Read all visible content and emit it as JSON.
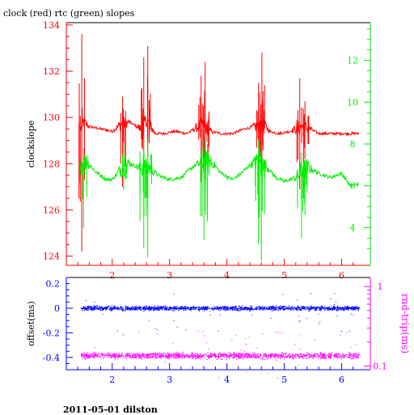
{
  "header": {
    "title": "clock (red) rtc (green) slopes"
  },
  "footer": {
    "caption": "2011-05-01 dilston"
  },
  "colors": {
    "frame": "#000000",
    "clock": "#ff0000",
    "rtc": "#00ee00",
    "offset": "#0000ff",
    "rndtrip": "#ff00ff"
  },
  "chart_data": [
    {
      "type": "line",
      "title": "clock (red) rtc (green) slopes",
      "ylabel": "clockslope",
      "xlim": [
        1.2,
        6.5
      ],
      "ylim": [
        123.6,
        134.1
      ],
      "y2lim": [
        2.2,
        13.8
      ],
      "x_ticks": [
        2,
        3,
        4,
        5,
        6
      ],
      "y_ticks": [
        124,
        126,
        128,
        130,
        132,
        134
      ],
      "y2_ticks": [
        4,
        6,
        8,
        10,
        12
      ],
      "grid": false,
      "series": [
        {
          "name": "clock",
          "axis": "left",
          "x": [
            1.45,
            1.5,
            1.6,
            1.8,
            2.0,
            2.15,
            2.3,
            2.5,
            2.6,
            2.75,
            2.9,
            3.1,
            3.3,
            3.5,
            3.6,
            3.7,
            3.9,
            4.1,
            4.3,
            4.5,
            4.6,
            4.75,
            4.9,
            5.1,
            5.3,
            5.45,
            5.6,
            5.8,
            6.0,
            6.2,
            6.3
          ],
          "y": [
            129.5,
            129.8,
            129.6,
            129.5,
            129.4,
            129.7,
            129.8,
            129.5,
            129.9,
            129.3,
            129.3,
            129.4,
            129.3,
            129.6,
            129.7,
            129.4,
            129.3,
            129.3,
            129.5,
            129.6,
            129.8,
            129.4,
            129.3,
            129.4,
            129.6,
            129.5,
            129.3,
            129.3,
            129.3,
            129.3,
            129.3
          ],
          "spikes": [
            {
              "x": 1.47,
              "min": 124.2,
              "max": 133.6
            },
            {
              "x": 2.18,
              "min": 127.0,
              "max": 130.9
            },
            {
              "x": 2.55,
              "min": 127.6,
              "max": 132.6
            },
            {
              "x": 2.62,
              "min": 128.3,
              "max": 133.1
            },
            {
              "x": 3.55,
              "min": 127.2,
              "max": 131.8
            },
            {
              "x": 3.62,
              "min": 127.9,
              "max": 132.4
            },
            {
              "x": 4.55,
              "min": 127.3,
              "max": 131.5
            },
            {
              "x": 4.61,
              "min": 128.0,
              "max": 132.8
            },
            {
              "x": 5.27,
              "min": 126.9,
              "max": 131.7
            },
            {
              "x": 5.36,
              "min": 128.2,
              "max": 130.7
            }
          ]
        },
        {
          "name": "rtc",
          "axis": "right",
          "x": [
            1.45,
            1.55,
            1.7,
            1.9,
            2.0,
            2.15,
            2.3,
            2.5,
            2.65,
            2.8,
            3.0,
            3.2,
            3.4,
            3.6,
            3.75,
            3.9,
            4.1,
            4.25,
            4.4,
            4.55,
            4.7,
            4.85,
            5.0,
            5.2,
            5.4,
            5.6,
            5.8,
            6.0,
            6.15,
            6.3
          ],
          "y": [
            6.9,
            7.2,
            6.7,
            6.3,
            6.3,
            6.8,
            7.1,
            6.8,
            6.9,
            6.5,
            6.3,
            6.4,
            6.9,
            7.2,
            7.1,
            6.6,
            6.3,
            6.6,
            7.0,
            7.2,
            6.9,
            6.4,
            6.2,
            6.4,
            6.9,
            6.6,
            6.4,
            6.6,
            6.0,
            6.1
          ],
          "spikes": [
            {
              "x": 1.5,
              "min": 4.0,
              "max": 7.8
            },
            {
              "x": 2.2,
              "min": 5.8,
              "max": 8.0
            },
            {
              "x": 2.55,
              "min": 3.0,
              "max": 8.4
            },
            {
              "x": 2.62,
              "min": 2.6,
              "max": 8.2
            },
            {
              "x": 3.6,
              "min": 3.4,
              "max": 8.3
            },
            {
              "x": 3.66,
              "min": 4.3,
              "max": 8.0
            },
            {
              "x": 4.55,
              "min": 3.2,
              "max": 8.2
            },
            {
              "x": 4.6,
              "min": 2.4,
              "max": 8.0
            },
            {
              "x": 5.3,
              "min": 3.5,
              "max": 7.6
            },
            {
              "x": 5.36,
              "min": 4.6,
              "max": 7.2
            }
          ]
        }
      ]
    },
    {
      "type": "scatter",
      "ylabel": "offset(ms)",
      "y2label": "rnd-trip(ms)",
      "xlim": [
        1.2,
        6.5
      ],
      "ylim": [
        -0.5,
        0.25
      ],
      "y2lim": [
        0.09,
        1.3
      ],
      "y2_scale": "log",
      "x_ticks": [
        2,
        3,
        4,
        5,
        6
      ],
      "y_ticks": [
        0.2,
        0,
        -0.2,
        -0.4
      ],
      "y_tick_labels": [
        "0.2",
        "0",
        "-0.2",
        "-0.4"
      ],
      "y2_ticks": [
        1,
        0.1
      ],
      "grid": false,
      "series": [
        {
          "name": "offset",
          "axis": "left",
          "x_range": [
            1.45,
            6.3
          ],
          "center": 0.0,
          "spread": 0.012
        },
        {
          "name": "rnd-trip",
          "axis": "right",
          "x_range": [
            1.45,
            6.3
          ],
          "center": 0.135,
          "spread": 0.008
        }
      ]
    }
  ]
}
